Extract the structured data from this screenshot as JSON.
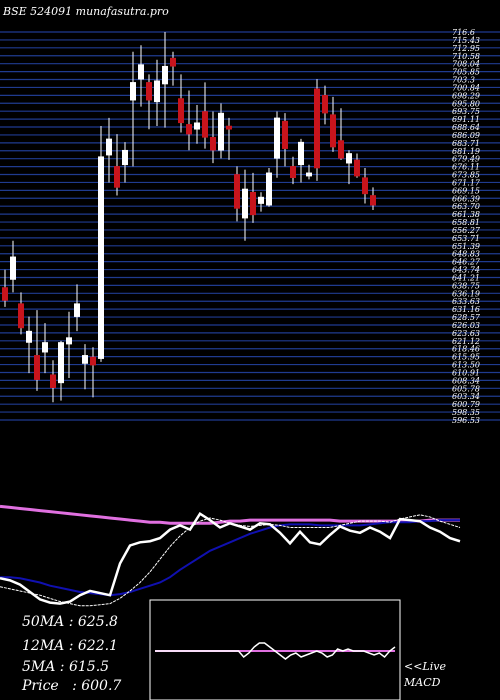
{
  "header": {
    "title": "BSE 524091 munafasutra.pro"
  },
  "chart_data": {
    "type": "candlestick",
    "ylim": [
      596.5,
      716.6
    ],
    "tick_labels": [
      "716.6",
      "715.43",
      "712.95",
      "710.58",
      "708.04",
      "705.85",
      "703.3",
      "700.84",
      "698.29",
      "695.80",
      "693.75",
      "691.11",
      "688.64",
      "686.09",
      "683.71",
      "681.19",
      "679.49",
      "676.11",
      "673.85",
      "671.17",
      "669.15",
      "666.39",
      "663.70",
      "661.38",
      "658.81",
      "656.27",
      "653.71",
      "651.39",
      "648.83",
      "646.27",
      "643.74",
      "641.21",
      "638.75",
      "636.19",
      "633.63",
      "631.16",
      "628.57",
      "626.03",
      "623.63",
      "621.12",
      "618.46",
      "615.95",
      "613.50",
      "610.91",
      "608.34",
      "605.78",
      "603.34",
      "600.79",
      "598.35",
      "596.53"
    ],
    "candles": [
      {
        "o": 637.5,
        "h": 643.0,
        "l": 631.5,
        "c": 633.5
      },
      {
        "o": 640.0,
        "h": 652.0,
        "l": 636.0,
        "c": 647.0
      },
      {
        "o": 632.5,
        "h": 636.0,
        "l": 623.0,
        "c": 625.0
      },
      {
        "o": 620.5,
        "h": 628.5,
        "l": 611.0,
        "c": 624.0
      },
      {
        "o": 616.5,
        "h": 630.5,
        "l": 605.5,
        "c": 609.0
      },
      {
        "o": 617.5,
        "h": 626.5,
        "l": 611.0,
        "c": 620.5
      },
      {
        "o": 610.5,
        "h": 615.0,
        "l": 602.0,
        "c": 606.5
      },
      {
        "o": 608.0,
        "h": 621.0,
        "l": 602.5,
        "c": 620.5
      },
      {
        "o": 620.0,
        "h": 630.0,
        "l": 609.5,
        "c": 622.0
      },
      {
        "o": 628.5,
        "h": 638.5,
        "l": 624.0,
        "c": 632.5
      },
      {
        "o": 614.0,
        "h": 620.0,
        "l": 606.0,
        "c": 616.5
      },
      {
        "o": 616.0,
        "h": 619.0,
        "l": 603.5,
        "c": 613.5
      },
      {
        "o": 615.5,
        "h": 687.5,
        "l": 614.5,
        "c": 678.0
      },
      {
        "o": 678.5,
        "h": 690.0,
        "l": 670.0,
        "c": 683.5
      },
      {
        "o": 675.0,
        "h": 685.0,
        "l": 666.0,
        "c": 668.5
      },
      {
        "o": 675.5,
        "h": 682.5,
        "l": 670.0,
        "c": 680.0
      },
      {
        "o": 695.5,
        "h": 710.5,
        "l": 675.0,
        "c": 701.0
      },
      {
        "o": 702.0,
        "h": 712.5,
        "l": 693.5,
        "c": 706.5
      },
      {
        "o": 701.0,
        "h": 703.5,
        "l": 686.5,
        "c": 695.5
      },
      {
        "o": 695.0,
        "h": 708.0,
        "l": 687.5,
        "c": 701.5
      },
      {
        "o": 700.5,
        "h": 716.6,
        "l": 687.0,
        "c": 706.0
      },
      {
        "o": 708.5,
        "h": 710.5,
        "l": 700.0,
        "c": 706.0
      },
      {
        "o": 696.0,
        "h": 703.5,
        "l": 685.5,
        "c": 688.5
      },
      {
        "o": 688.0,
        "h": 698.5,
        "l": 680.0,
        "c": 685.0
      },
      {
        "o": 686.5,
        "h": 694.0,
        "l": 682.0,
        "c": 688.5
      },
      {
        "o": 692.0,
        "h": 701.0,
        "l": 680.5,
        "c": 684.0
      },
      {
        "o": 684.0,
        "h": 692.0,
        "l": 676.0,
        "c": 680.0
      },
      {
        "o": 680.0,
        "h": 694.5,
        "l": 677.5,
        "c": 691.5
      },
      {
        "o": 687.5,
        "h": 690.0,
        "l": 677.0,
        "c": 686.5
      },
      {
        "o": 672.5,
        "h": 675.0,
        "l": 658.0,
        "c": 662.0
      },
      {
        "o": 659.0,
        "h": 674.0,
        "l": 652.0,
        "c": 668.0
      },
      {
        "o": 667.0,
        "h": 673.0,
        "l": 657.5,
        "c": 660.0
      },
      {
        "o": 663.5,
        "h": 667.0,
        "l": 661.0,
        "c": 665.5
      },
      {
        "o": 663.0,
        "h": 674.5,
        "l": 662.5,
        "c": 673.0
      },
      {
        "o": 677.5,
        "h": 692.0,
        "l": 671.5,
        "c": 690.0
      },
      {
        "o": 689.0,
        "h": 691.5,
        "l": 675.0,
        "c": 680.5
      },
      {
        "o": 675.0,
        "h": 678.0,
        "l": 669.5,
        "c": 671.5
      },
      {
        "o": 675.5,
        "h": 683.5,
        "l": 670.0,
        "c": 682.5
      },
      {
        "o": 672.0,
        "h": 675.5,
        "l": 671.0,
        "c": 673.0
      },
      {
        "o": 699.0,
        "h": 702.0,
        "l": 670.5,
        "c": 674.5
      },
      {
        "o": 697.0,
        "h": 700.0,
        "l": 688.0,
        "c": 691.5
      },
      {
        "o": 691.0,
        "h": 696.5,
        "l": 679.5,
        "c": 681.0
      },
      {
        "o": 683.0,
        "h": 693.0,
        "l": 677.0,
        "c": 677.5
      },
      {
        "o": 676.0,
        "h": 680.0,
        "l": 669.5,
        "c": 679.0
      },
      {
        "o": 677.0,
        "h": 679.0,
        "l": 671.5,
        "c": 672.0
      },
      {
        "o": 671.5,
        "h": 674.5,
        "l": 663.5,
        "c": 666.5
      },
      {
        "o": 666.0,
        "h": 668.5,
        "l": 661.5,
        "c": 663.0
      }
    ],
    "indicators": {
      "ma_pink": [
        650,
        649,
        648,
        647,
        646,
        645,
        644,
        643,
        642,
        641,
        640,
        639,
        638,
        637,
        636,
        635,
        635,
        634,
        634,
        634,
        634,
        634,
        635,
        636,
        636,
        637,
        637,
        637,
        637,
        637,
        637,
        637,
        637,
        637,
        636,
        636,
        636,
        636,
        636,
        636,
        636,
        636,
        636,
        637,
        637,
        637,
        637
      ],
      "ma_blue": [
        583,
        583,
        582,
        580,
        578,
        575,
        573,
        571,
        569,
        568,
        567,
        566,
        567,
        569,
        572,
        575,
        578,
        583,
        590,
        596,
        602,
        608,
        612,
        616,
        620,
        624,
        627,
        630,
        632,
        633,
        633,
        633,
        632,
        632,
        632,
        632,
        632,
        633,
        634,
        635,
        635,
        635,
        636,
        636,
        637,
        637,
        637
      ],
      "ma_thin": [
        574,
        572,
        570,
        568,
        566,
        563,
        560,
        558,
        556,
        556,
        557,
        558,
        563,
        570,
        578,
        588,
        600,
        612,
        622,
        630,
        636,
        639,
        637,
        634,
        632,
        631,
        632,
        633,
        632,
        630,
        630,
        630,
        630,
        630,
        632,
        634,
        636,
        636,
        636,
        635,
        638,
        640,
        642,
        640,
        636,
        633,
        630
      ],
      "price_line": [
        582,
        580,
        576,
        569,
        562,
        559,
        558,
        560,
        566,
        570,
        568,
        566,
        596,
        613,
        616,
        617,
        620,
        628,
        632,
        628,
        643,
        637,
        630,
        634,
        631,
        628,
        634,
        633,
        625,
        615,
        626,
        616,
        614,
        623,
        631,
        627,
        625,
        630,
        626,
        620,
        638,
        637,
        636,
        630,
        626,
        620,
        617
      ]
    },
    "macd": {
      "signal": [
        0,
        0,
        0,
        0,
        0,
        0,
        0,
        0,
        0,
        0,
        0,
        0,
        0,
        0,
        0,
        0,
        0,
        0,
        0,
        0,
        0,
        0,
        0,
        0,
        0,
        0,
        0,
        0,
        0,
        0,
        0,
        0,
        0,
        0,
        0,
        0,
        0,
        0,
        0,
        0,
        0,
        0,
        0,
        0,
        0,
        0,
        0
      ],
      "macd": [
        0,
        0,
        0,
        0,
        0,
        0,
        0,
        0,
        0,
        0,
        0,
        0,
        0,
        0,
        0,
        0,
        0,
        -3,
        -1,
        2,
        4,
        4,
        2,
        0,
        -2,
        -4,
        -2,
        -1,
        -3,
        -2,
        -1,
        0,
        -1,
        -3,
        -2,
        1,
        0,
        1,
        0,
        0,
        0,
        -1,
        -2,
        -1,
        -3,
        0,
        2
      ]
    },
    "legend": {
      "ma50": "50MA : 625.8",
      "ma12": "12MA : 622.1",
      "ma5": "5MA : 615.5",
      "price": "Price   : 600.7"
    },
    "macd_label": "<<Live",
    "macd_title": "MACD",
    "colors": {
      "background": "#000000",
      "grid": "#1f3b8f",
      "bull_body": "#ffffff",
      "bear_body": "#c8141c",
      "ma_pink": "#e070e0",
      "ma_blue": "#1010b0",
      "ma_thin": "#ffffff",
      "macd_pink": "#e070e0"
    }
  }
}
